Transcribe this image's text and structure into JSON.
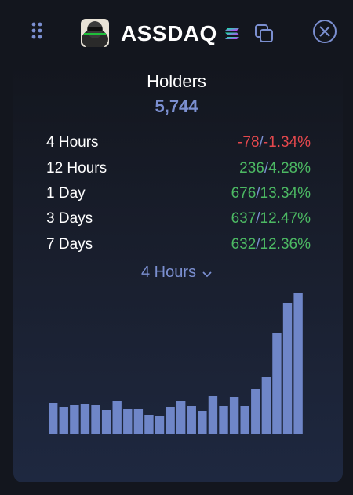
{
  "header": {
    "token_name": "ASSDAQ",
    "icons": {
      "drag": "drag-handle-icon",
      "logo": "token-logo",
      "chain": "solana-icon",
      "copy": "copy-icon",
      "close": "close-icon"
    }
  },
  "holders": {
    "title": "Holders",
    "count": "5,744"
  },
  "stats": [
    {
      "label": "4 Hours",
      "change": "-78",
      "percent": "-1.34%",
      "trend": "down"
    },
    {
      "label": "12 Hours",
      "change": "236",
      "percent": "4.28%",
      "trend": "up"
    },
    {
      "label": "1 Day",
      "change": "676",
      "percent": "13.34%",
      "trend": "up"
    },
    {
      "label": "3 Days",
      "change": "637",
      "percent": "12.47%",
      "trend": "up"
    },
    {
      "label": "7 Days",
      "change": "632",
      "percent": "12.36%",
      "trend": "up"
    }
  ],
  "period_select": {
    "value": "4 Hours"
  },
  "colors": {
    "accent": "#7b8fd0",
    "negative": "#e5484d",
    "positive": "#4cb963",
    "bar": "#6f86c8"
  },
  "chart_data": {
    "type": "bar",
    "values": [
      39,
      34,
      37,
      38,
      37,
      30,
      42,
      32,
      32,
      24,
      23,
      34,
      42,
      35,
      29,
      48,
      35,
      47,
      35,
      57,
      72,
      129,
      167,
      180
    ]
  }
}
